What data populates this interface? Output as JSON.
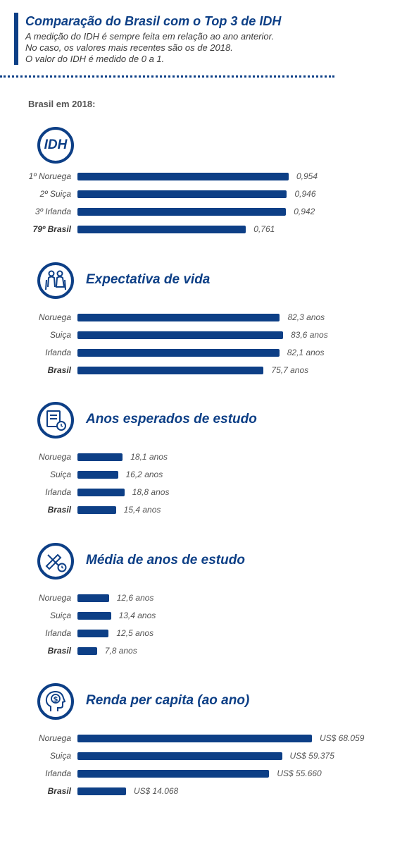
{
  "header": {
    "title": "Comparação do Brasil com o Top 3 de IDH",
    "subtitle_lines": [
      "A medição do IDH é sempre feita em relação ao ano anterior.",
      "No caso, os valores mais recentes são os de 2018.",
      "O valor do IDH é medido de 0 a 1."
    ]
  },
  "brasil_year_label": "Brasil em 2018:",
  "sections": [
    {
      "title": "",
      "icon_text": "IDH",
      "icon": "idh-badge-icon"
    },
    {
      "title": "Expectativa de vida",
      "icon": "elderly-couple-icon"
    },
    {
      "title": "Anos esperados de estudo",
      "icon": "book-clock-icon"
    },
    {
      "title": "Média de anos de estudo",
      "icon": "pencil-ruler-clock-icon"
    },
    {
      "title": "Renda per capita (ao ano)",
      "icon": "head-dollar-icon"
    }
  ],
  "chart_data": [
    {
      "type": "bar",
      "orientation": "horizontal",
      "title": "IDH",
      "categories": [
        "1º Noruega",
        "2º Suiça",
        "3º Irlanda",
        "79º Brasil"
      ],
      "values": [
        0.954,
        0.946,
        0.942,
        0.761
      ],
      "value_labels": [
        "0,954",
        "0,946",
        "0,942",
        "0,761"
      ],
      "xlim": [
        0,
        1
      ]
    },
    {
      "type": "bar",
      "orientation": "horizontal",
      "title": "Expectativa de vida",
      "categories": [
        "Noruega",
        "Suiça",
        "Irlanda",
        "Brasil"
      ],
      "values": [
        82.3,
        83.6,
        82.1,
        75.7
      ],
      "value_labels": [
        "82,3 anos",
        "83,6 anos",
        "82,1 anos",
        "75,7 anos"
      ]
    },
    {
      "type": "bar",
      "orientation": "horizontal",
      "title": "Anos esperados de estudo",
      "categories": [
        "Noruega",
        "Suiça",
        "Irlanda",
        "Brasil"
      ],
      "values": [
        18.1,
        16.2,
        18.8,
        15.4
      ],
      "value_labels": [
        "18,1 anos",
        "16,2 anos",
        "18,8 anos",
        "15,4 anos"
      ]
    },
    {
      "type": "bar",
      "orientation": "horizontal",
      "title": "Média de anos de estudo",
      "categories": [
        "Noruega",
        "Suiça",
        "Irlanda",
        "Brasil"
      ],
      "values": [
        12.6,
        13.4,
        12.5,
        7.8
      ],
      "value_labels": [
        "12,6 anos",
        "13,4 anos",
        "12,5 anos",
        "7,8 anos"
      ]
    },
    {
      "type": "bar",
      "orientation": "horizontal",
      "title": "Renda per capita (ao ano)",
      "categories": [
        "Noruega",
        "Suiça",
        "Irlanda",
        "Brasil"
      ],
      "values": [
        68059,
        59375,
        55660,
        14068
      ],
      "value_labels": [
        "US$ 68.059",
        "US$ 59.375",
        "US$ 55.660",
        "US$ 14.068"
      ]
    }
  ],
  "colors": {
    "primary": "#0d3f86",
    "text": "#4a4a4a"
  }
}
